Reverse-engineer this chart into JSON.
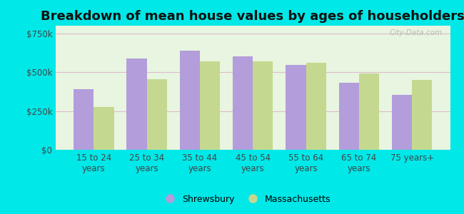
{
  "title": "Breakdown of mean house values by ages of householders",
  "categories": [
    "15 to 24\nyears",
    "25 to 34\nyears",
    "35 to 44\nyears",
    "45 to 54\nyears",
    "55 to 64\nyears",
    "65 to 74\nyears",
    "75 years+"
  ],
  "shrewsbury": [
    390000,
    590000,
    640000,
    600000,
    545000,
    430000,
    355000
  ],
  "massachusetts": [
    275000,
    455000,
    570000,
    570000,
    560000,
    490000,
    450000
  ],
  "shrewsbury_color": "#b39ddb",
  "massachusetts_color": "#c5d890",
  "background_color": "#e8f5e0",
  "outer_background": "#00e8e8",
  "ylim": [
    0,
    800000
  ],
  "yticks": [
    0,
    250000,
    500000,
    750000
  ],
  "ytick_labels": [
    "$0",
    "$250k",
    "$500k",
    "$750k"
  ],
  "legend_shrewsbury": "Shrewsbury",
  "legend_massachusetts": "Massachusetts",
  "watermark": "City-Data.com",
  "title_fontsize": 13,
  "tick_fontsize": 8.5
}
